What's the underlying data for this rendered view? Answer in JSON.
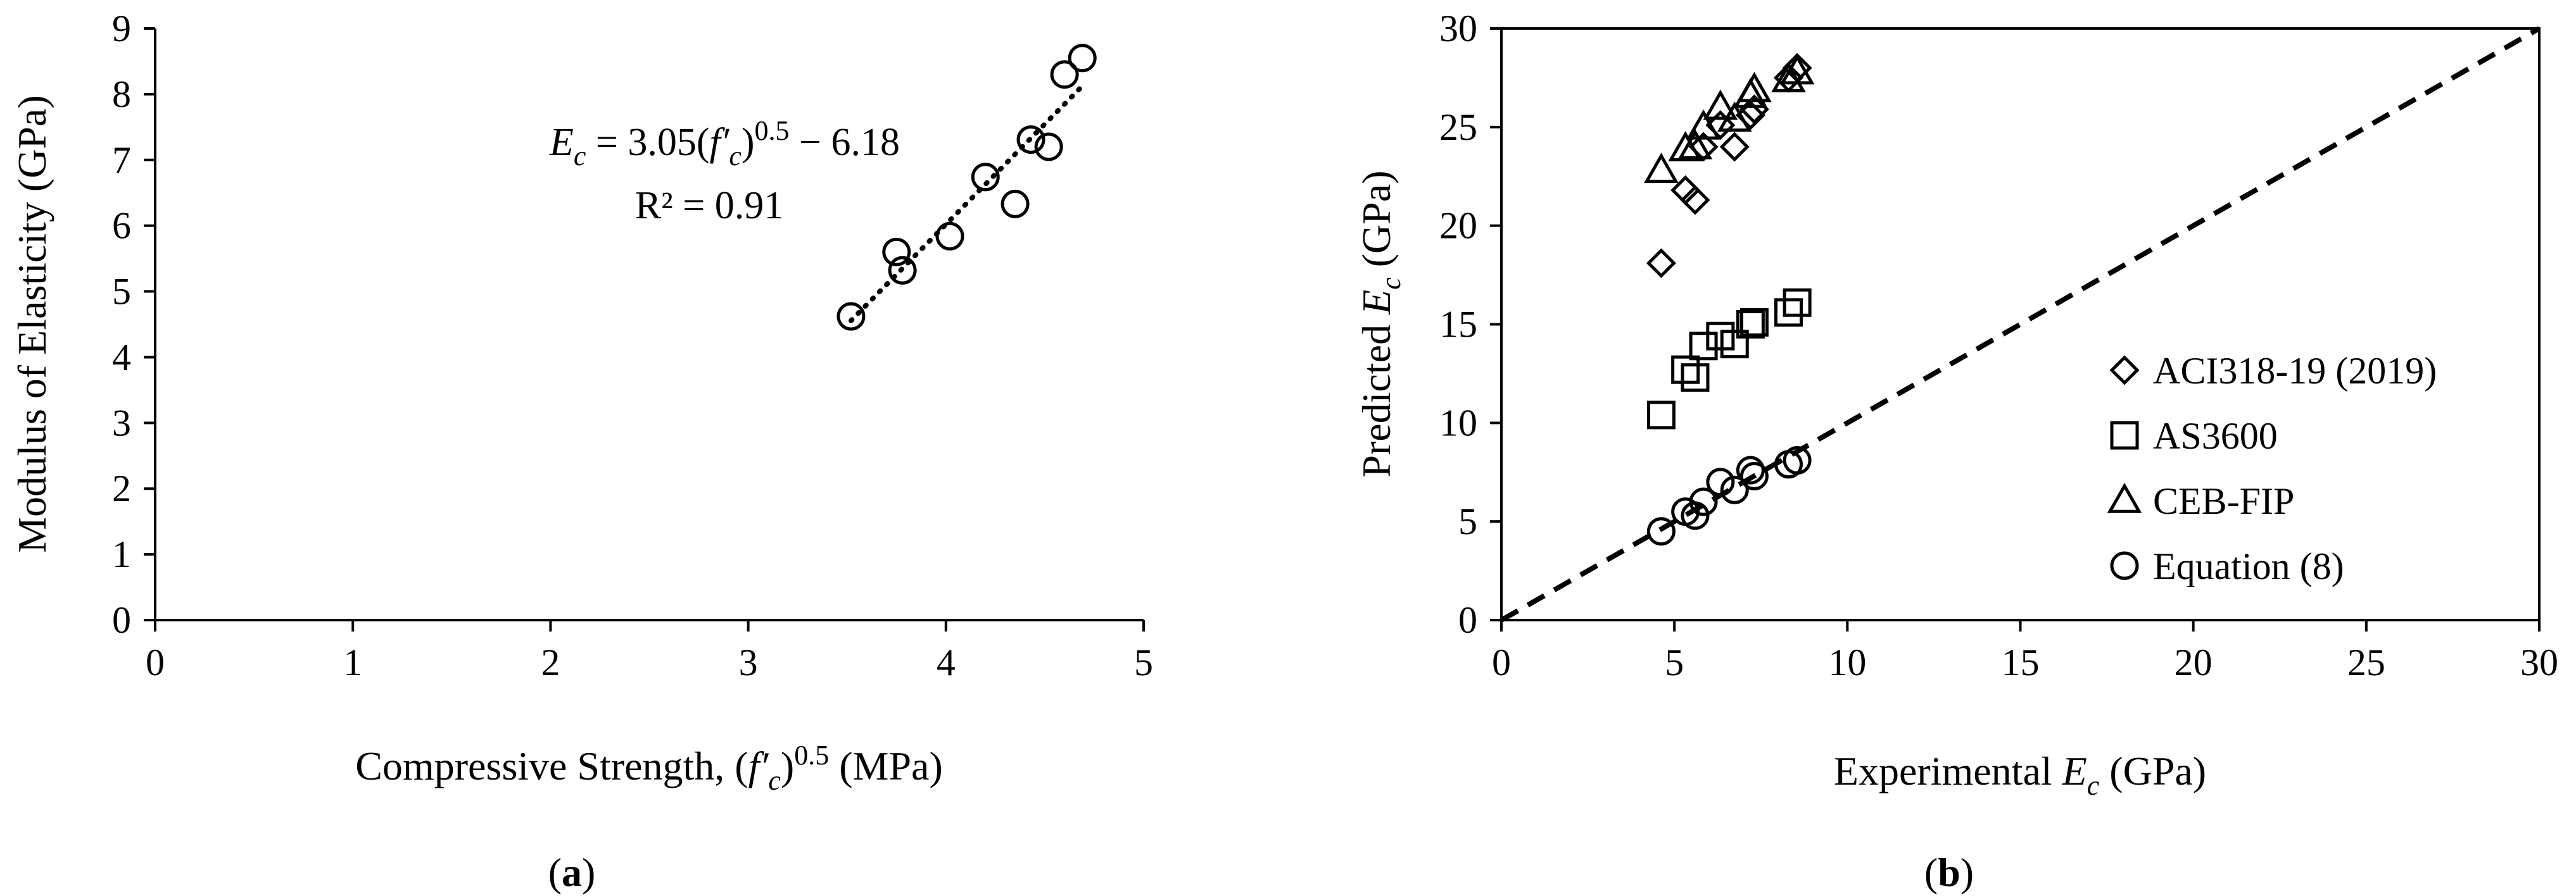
{
  "chart_data": [
    {
      "type": "scatter",
      "panel_label": "(a)",
      "panel_label_open": "(",
      "panel_label_letter": "a",
      "panel_label_close": ")",
      "title": "",
      "xlabel": "Compressive Strength, (f′c)0.5 (MPa)",
      "xlabel_parts": {
        "text": "Compressive Strength, (",
        "var": "f′",
        "var_sub": "c",
        "close": ")",
        "sup": "0.5",
        "unit": " (MPa)"
      },
      "ylabel": "Modulus of Elasticity (GPa)",
      "xlim": [
        0,
        5
      ],
      "ylim": [
        0,
        9
      ],
      "xticks": [
        "0",
        "1",
        "2",
        "3",
        "4",
        "5"
      ],
      "yticks": [
        "0",
        "1",
        "2",
        "3",
        "4",
        "5",
        "6",
        "7",
        "8",
        "9"
      ],
      "grid": false,
      "series": [
        {
          "marker": "circle",
          "x": [
            3.52,
            3.75,
            3.78,
            4.02,
            4.2,
            4.35,
            4.43,
            4.52,
            4.6,
            4.69
          ],
          "y": [
            4.62,
            5.6,
            5.32,
            5.84,
            6.74,
            6.33,
            7.31,
            7.2,
            8.3,
            8.55
          ]
        }
      ],
      "trendline": {
        "style": "dotted",
        "slope": 3.05,
        "intercept": -6.18,
        "x_range": [
          3.52,
          4.69
        ],
        "equation": "Ec = 3.05(f′c)0.5 − 6.18",
        "equation_parts": {
          "lhs_var": "E",
          "lhs_sub": "c",
          "eq": " = 3.05(",
          "var": "f′",
          "var_sub": "c",
          "close": ")",
          "sup": "0.5",
          "rest": " − 6.18"
        },
        "r2": "R² = 0.91"
      }
    },
    {
      "type": "scatter",
      "panel_label": "(b)",
      "panel_label_open": "(",
      "panel_label_letter": "b",
      "panel_label_close": ")",
      "title": "",
      "xlabel": "Experimental Ec (GPa)",
      "xlabel_parts": {
        "text": "Experimental ",
        "var": "E",
        "var_sub": "c",
        "unit": " (GPa)"
      },
      "ylabel": "Predicted Ec (GPa)",
      "ylabel_parts": {
        "text": "Predicted ",
        "var": "E",
        "var_sub": "c",
        "unit": " (GPa)"
      },
      "xlim": [
        0,
        30
      ],
      "ylim": [
        0,
        30
      ],
      "xticks": [
        "0",
        "5",
        "10",
        "15",
        "20",
        "25",
        "30"
      ],
      "yticks": [
        "0",
        "5",
        "10",
        "15",
        "20",
        "25",
        "30"
      ],
      "grid": false,
      "legend_position": "right-middle",
      "reference_line": {
        "style": "dashed",
        "x": [
          0,
          30
        ],
        "y": [
          0,
          30
        ]
      },
      "series": [
        {
          "name": "ACI318-19 (2019)",
          "marker": "diamond",
          "x": [
            4.62,
            5.32,
            5.6,
            5.84,
            6.33,
            6.74,
            7.2,
            7.31,
            8.3,
            8.55
          ],
          "y": [
            18.1,
            21.8,
            21.3,
            24.0,
            25.1,
            24.0,
            25.6,
            25.9,
            27.5,
            28.0
          ]
        },
        {
          "name": "AS3600",
          "marker": "square",
          "x": [
            4.62,
            5.32,
            5.6,
            5.84,
            6.33,
            6.74,
            7.2,
            7.31,
            8.3,
            8.55
          ],
          "y": [
            10.4,
            12.7,
            12.3,
            13.9,
            14.4,
            14.0,
            15.0,
            15.1,
            15.6,
            16.1
          ]
        },
        {
          "name": "CEB-FIP",
          "marker": "triangle",
          "x": [
            4.62,
            5.32,
            5.6,
            5.84,
            6.33,
            6.74,
            7.2,
            7.31,
            8.3,
            8.55
          ],
          "y": [
            22.8,
            23.9,
            24.0,
            25.0,
            26.0,
            25.4,
            26.6,
            26.9,
            27.4,
            27.8
          ]
        },
        {
          "name": "Equation (8)",
          "marker": "circle",
          "x": [
            4.62,
            5.32,
            5.6,
            5.84,
            6.33,
            6.74,
            7.2,
            7.31,
            8.3,
            8.55
          ],
          "y": [
            4.5,
            5.5,
            5.3,
            6.0,
            7.0,
            6.6,
            7.6,
            7.3,
            7.9,
            8.1
          ]
        }
      ]
    }
  ]
}
